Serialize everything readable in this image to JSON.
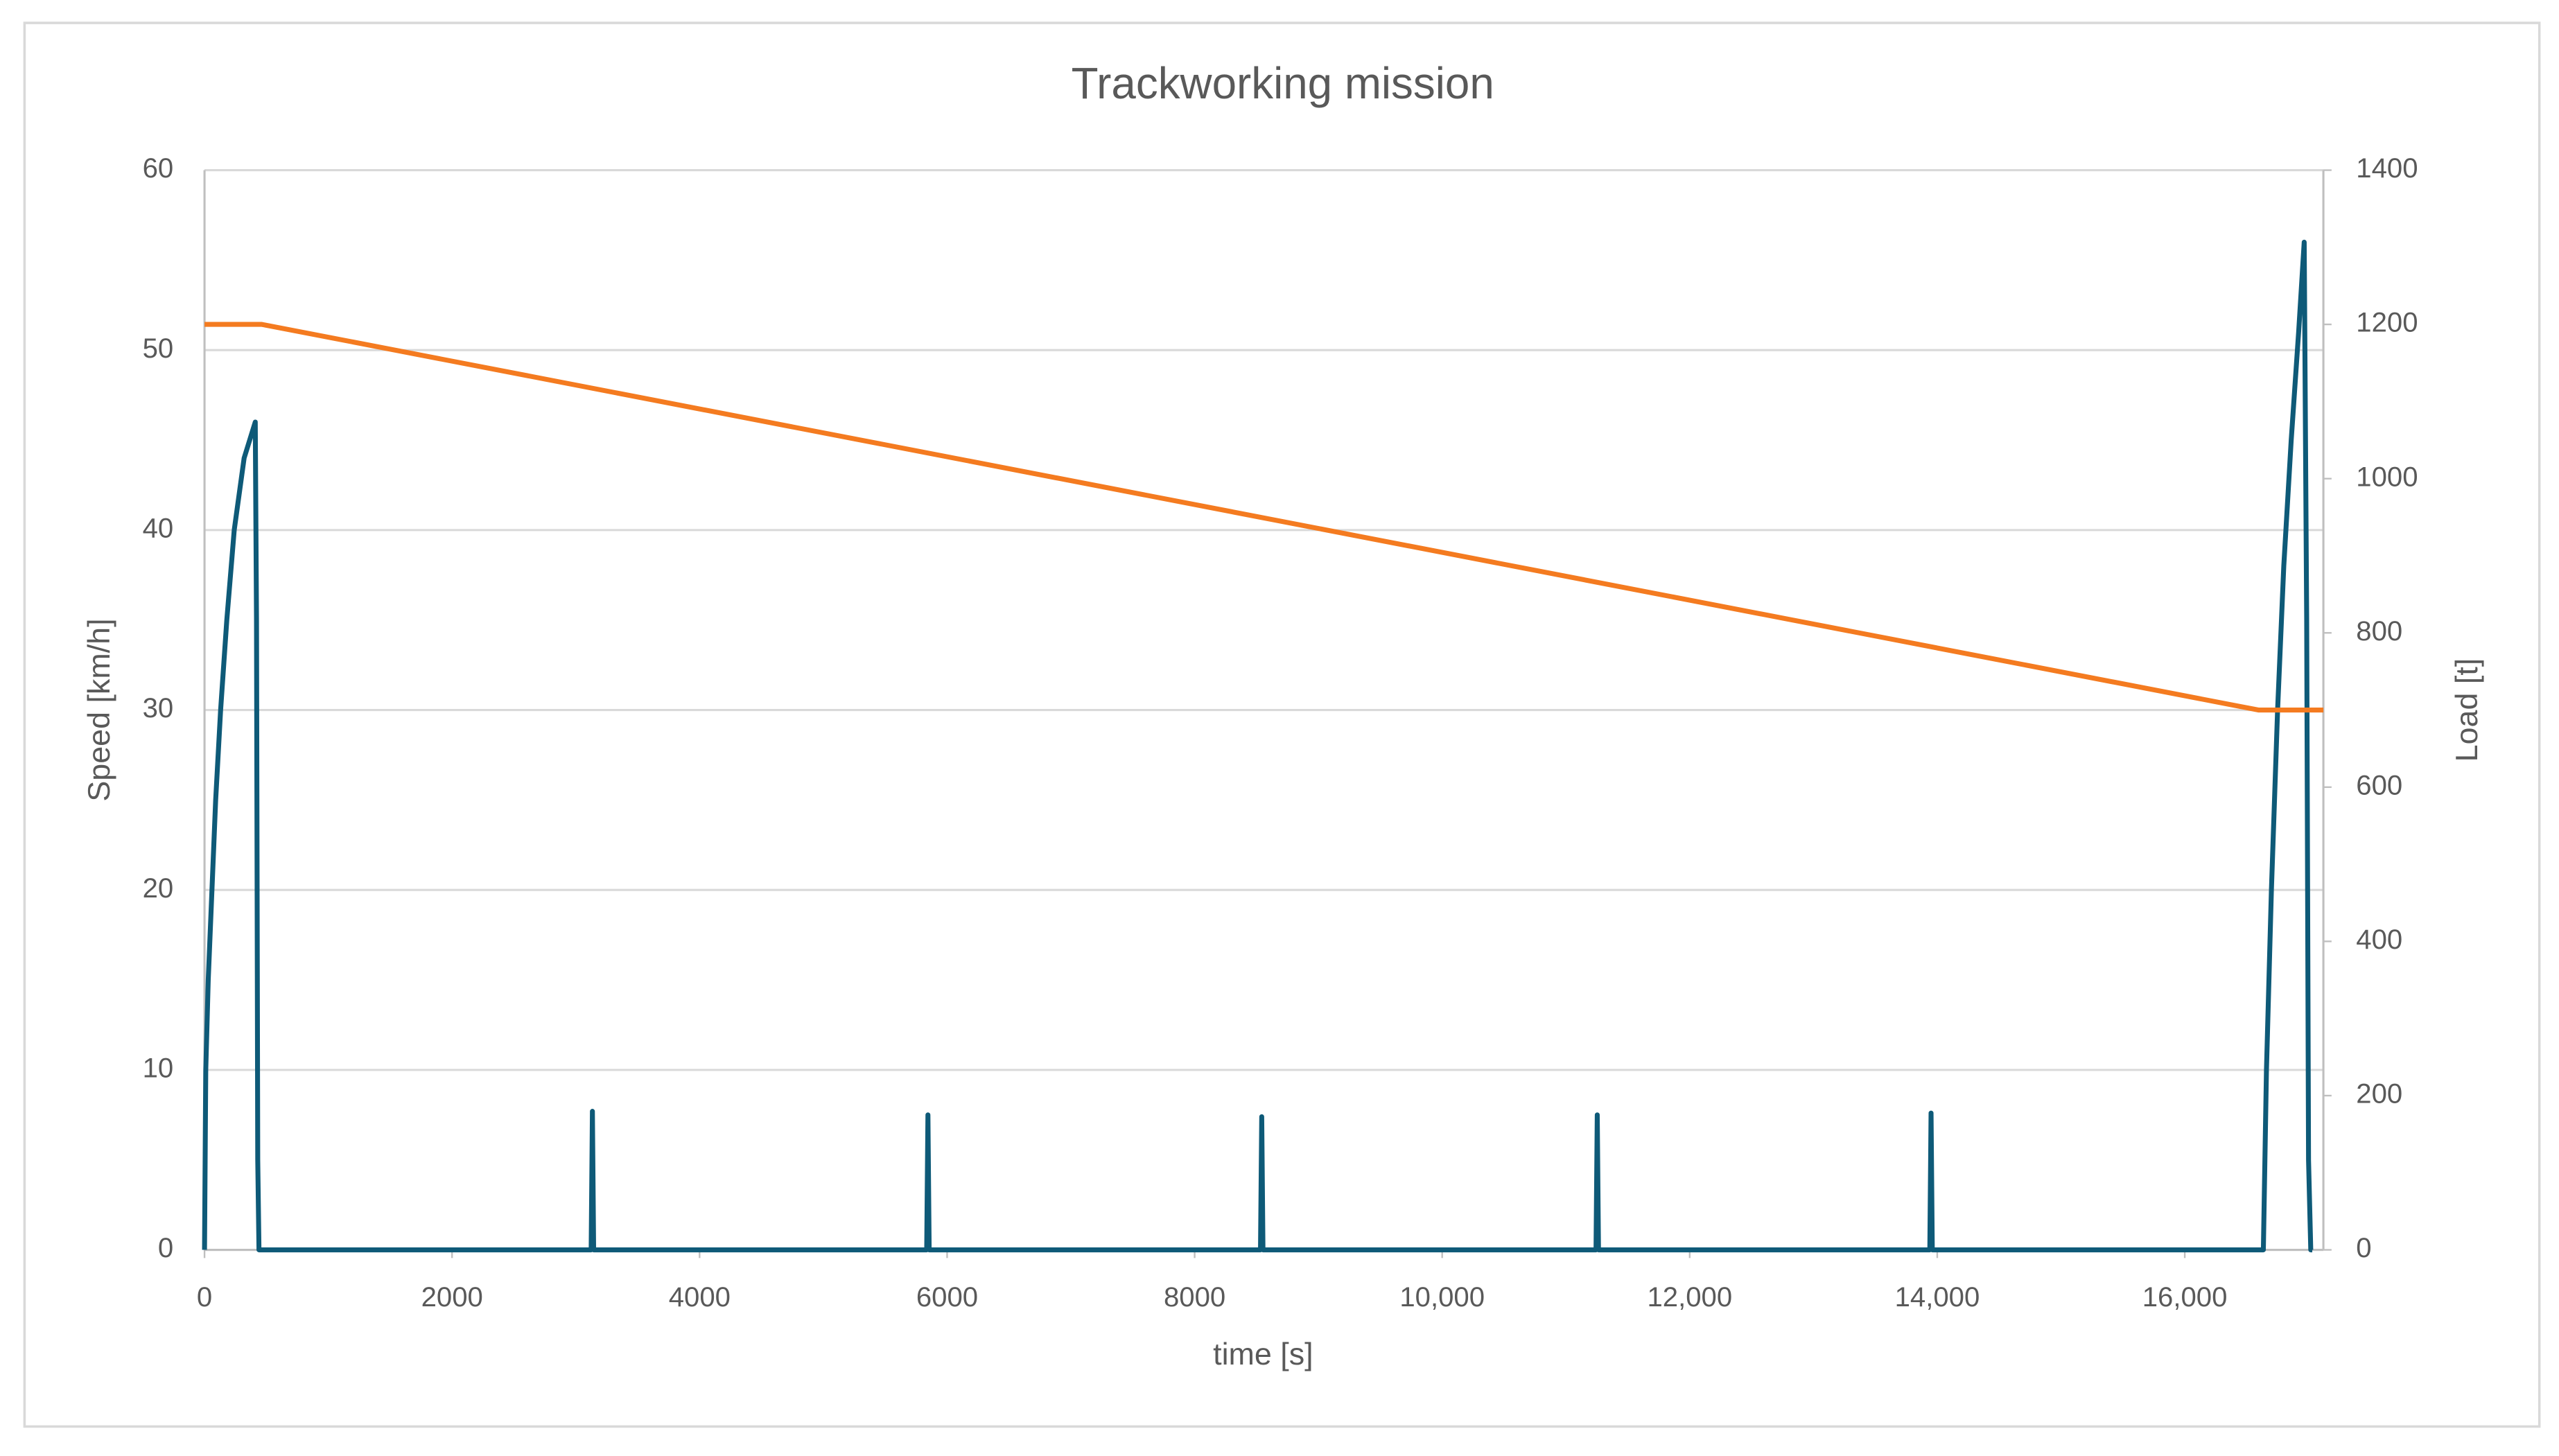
{
  "chart_data": {
    "type": "line",
    "title": "Trackworking mission",
    "x_label": "time [s]",
    "y_label": "Speed [km/h]",
    "y2_label": "Load [t]",
    "xlim": [
      0,
      17120
    ],
    "xticks": [
      0,
      2000,
      4000,
      6000,
      8000,
      {
        "value": 10000,
        "label": "10,000"
      },
      {
        "value": 12000,
        "label": "12,000"
      },
      {
        "value": 14000,
        "label": "14,000"
      },
      {
        "value": 16000,
        "label": "16,000"
      }
    ],
    "ylim": [
      0,
      60
    ],
    "yticks": [
      0,
      10,
      20,
      30,
      40,
      50,
      60
    ],
    "y2lim": [
      0,
      1400
    ],
    "y2ticks": [
      0,
      200,
      400,
      600,
      800,
      1000,
      1200,
      1400
    ],
    "grid": true,
    "series": [
      {
        "name": "Speed",
        "color": "#0e5a78",
        "x": [
          0,
          10,
          30,
          60,
          90,
          130,
          180,
          240,
          320,
          410,
          420,
          430,
          440,
          3124,
          3134,
          3144,
          5835,
          5845,
          5855,
          8532,
          8542,
          8552,
          11243,
          11253,
          11263,
          13940,
          13950,
          13960,
          16635,
          16660,
          16700,
          16750,
          16800,
          16860,
          16920,
          16965,
          16985,
          17000,
          17018,
          17030
        ],
        "values": [
          0,
          10,
          15,
          20,
          25,
          30,
          35,
          40,
          44,
          46,
          35,
          5,
          0,
          0,
          7.7,
          0,
          0,
          7.5,
          0,
          0,
          7.4,
          0,
          0,
          7.5,
          0,
          0,
          7.6,
          0,
          0,
          10,
          20,
          30,
          38,
          45,
          51,
          56,
          35,
          5,
          0,
          0
        ]
      },
      {
        "name": "Load",
        "color": "#f47b20",
        "axis": "y2",
        "x": [
          0,
          463,
          16595,
          17120
        ],
        "values": [
          1200,
          1200,
          700,
          700
        ]
      }
    ]
  }
}
